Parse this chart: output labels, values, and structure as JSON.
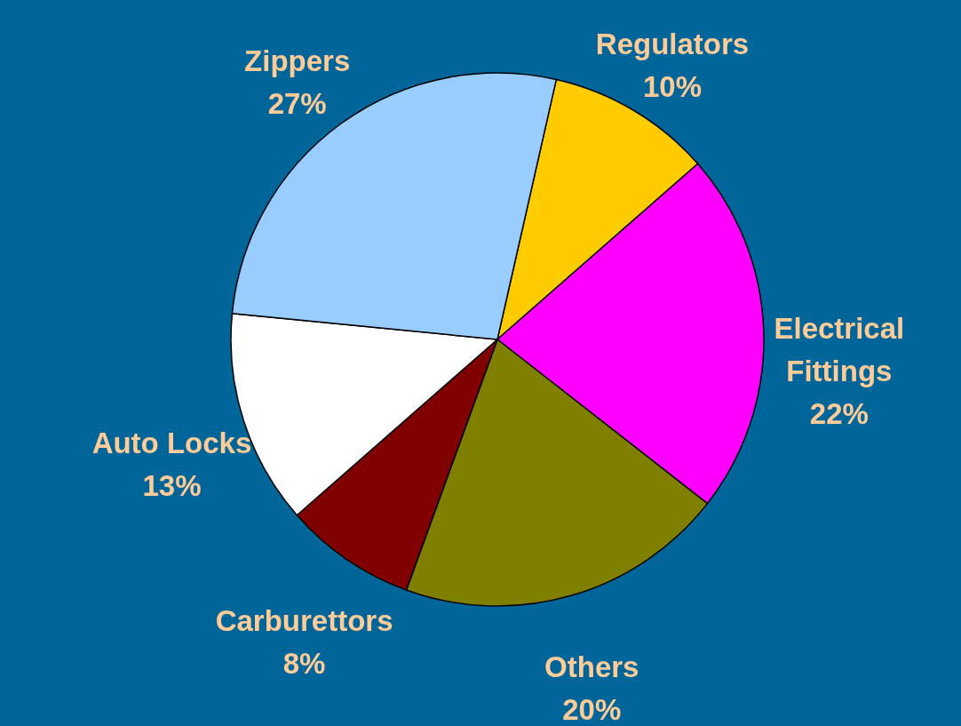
{
  "chart_data": {
    "type": "pie",
    "categories": [
      "Regulators",
      "Electrical Fittings",
      "Others",
      "Carburettors",
      "Auto Locks",
      "Zippers"
    ],
    "values": [
      10,
      22,
      20,
      8,
      13,
      27
    ],
    "value_labels": [
      "10%",
      "22%",
      "20%",
      "8%",
      "13%",
      "27%"
    ],
    "colors": [
      "#ffcc00",
      "#ff00ff",
      "#808000",
      "#800000",
      "#ffffff",
      "#99ccff"
    ]
  }
}
